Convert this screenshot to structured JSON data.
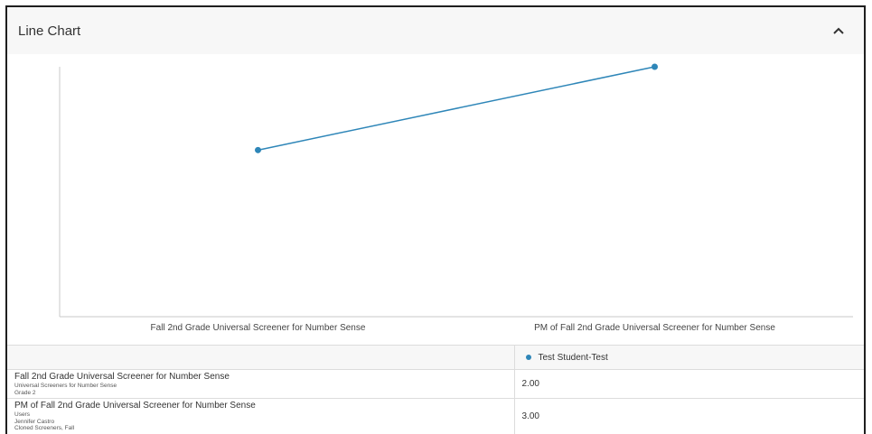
{
  "panel": {
    "title": "Line Chart",
    "collapse_icon": "chevron-up-icon"
  },
  "colors": {
    "series": "#2e86b8",
    "axis": "#c8c8c8"
  },
  "chart_data": {
    "type": "line",
    "title": "",
    "xlabel": "",
    "ylabel": "",
    "categories": [
      "Fall 2nd Grade Universal Screener for Number Sense",
      "PM of Fall 2nd Grade Universal Screener for Number Sense"
    ],
    "series": [
      {
        "name": "Test Student-Test",
        "values": [
          2.0,
          3.0
        ]
      }
    ],
    "ylim": [
      0.0,
      3.0
    ],
    "grid": false,
    "legend": "below-chart"
  },
  "table": {
    "legend_label": "Test Student-Test",
    "rows": [
      {
        "title": "Fall 2nd Grade Universal Screener for Number Sense",
        "sub": [
          "Universal Screeners for Number Sense",
          "Grade 2"
        ],
        "value": "2.00"
      },
      {
        "title": "PM of Fall 2nd Grade Universal Screener for Number Sense",
        "sub": [
          "Users",
          "Jennifer Castro",
          "Cloned Screeners, Fall"
        ],
        "value": "3.00"
      }
    ]
  }
}
